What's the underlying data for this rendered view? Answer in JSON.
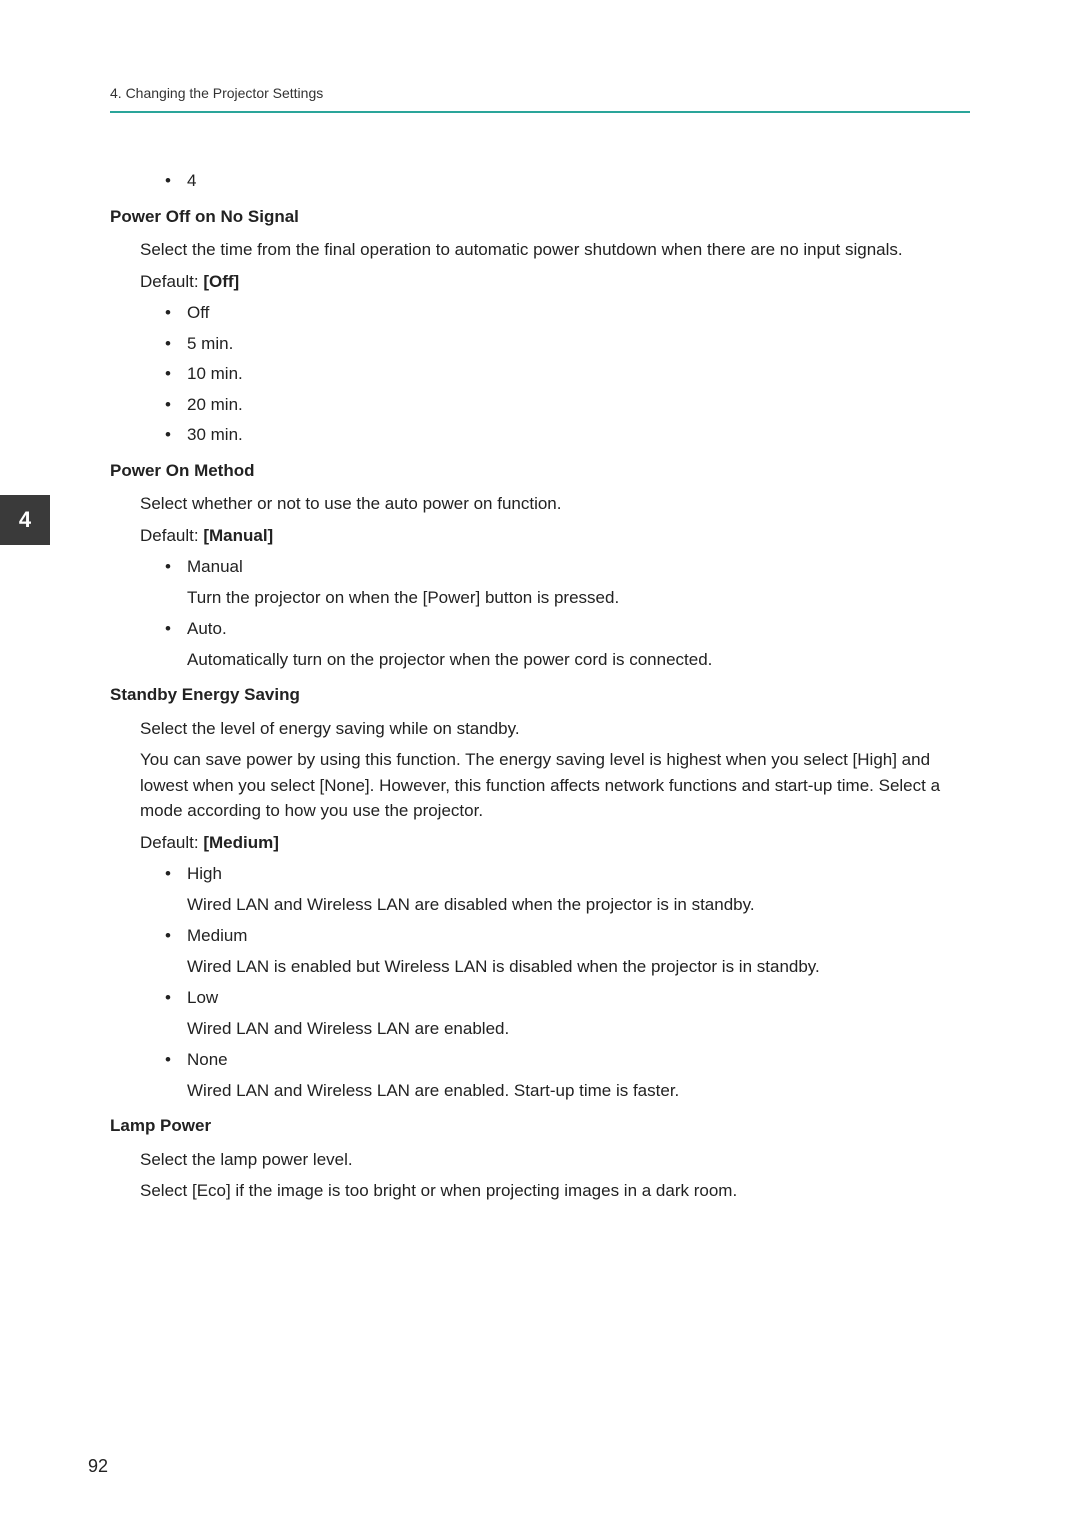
{
  "header": "4. Changing the Projector Settings",
  "chapter_tab": "4",
  "page_number": "92",
  "initial_bullet": "4",
  "sections": {
    "power_off": {
      "title": "Power Off on No Signal",
      "para": "Select the time from the final operation to automatic power shutdown when there are no input signals.",
      "default_label": "Default: ",
      "default_value": "[Off]",
      "items": [
        "Off",
        "5 min.",
        "10 min.",
        "20 min.",
        "30 min."
      ]
    },
    "power_on": {
      "title": "Power On Method",
      "para": "Select whether or not to use the auto power on function.",
      "default_label": "Default: ",
      "default_value": "[Manual]",
      "items": [
        {
          "name": "Manual",
          "desc": "Turn the projector on when the [Power] button is pressed."
        },
        {
          "name": "Auto.",
          "desc": "Automatically turn on the projector when the power cord is connected."
        }
      ]
    },
    "standby": {
      "title": "Standby Energy Saving",
      "para1": "Select the level of energy saving while on standby.",
      "para2": "You can save power by using this function. The energy saving level is highest when you select [High] and lowest when you select [None]. However, this function affects network functions and start-up time. Select a mode according to how you use the projector.",
      "default_label": "Default: ",
      "default_value": "[Medium]",
      "items": [
        {
          "name": "High",
          "desc": "Wired LAN and Wireless LAN are disabled when the projector is in standby."
        },
        {
          "name": "Medium",
          "desc": "Wired LAN is enabled but Wireless LAN is disabled when the projector is in standby."
        },
        {
          "name": "Low",
          "desc": "Wired LAN and Wireless LAN are enabled."
        },
        {
          "name": "None",
          "desc": "Wired LAN and Wireless LAN are enabled. Start-up time is faster."
        }
      ]
    },
    "lamp": {
      "title": "Lamp Power",
      "para1": "Select the lamp power level.",
      "para2": "Select [Eco] if the image is too bright or when projecting images in a dark room."
    }
  }
}
